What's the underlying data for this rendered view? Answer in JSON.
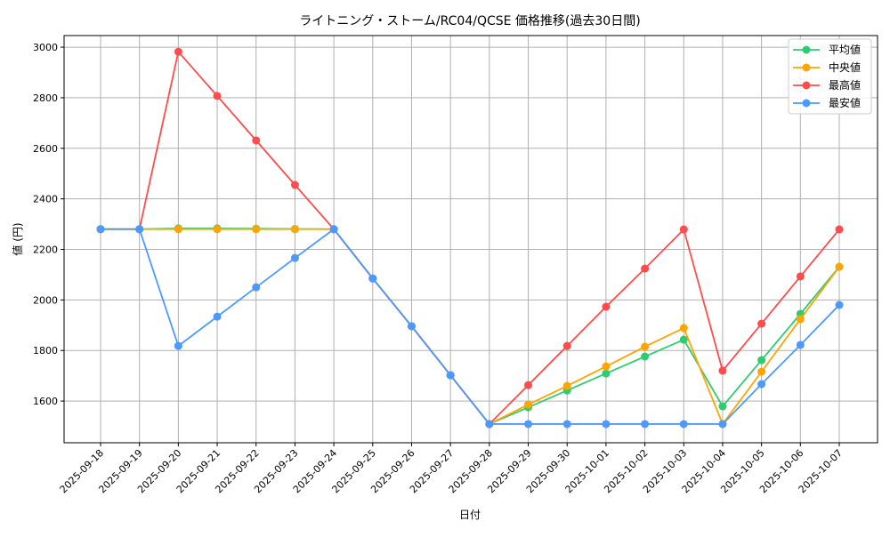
{
  "chart_data": {
    "type": "line",
    "title": "ライトニング・ストーム/RC04/QCSE 価格推移(過去30日間)",
    "xlabel": "日付",
    "ylabel": "値 (円)",
    "ylim": [
      1435,
      3046
    ],
    "yticks": [
      1600,
      1800,
      2000,
      2200,
      2400,
      2600,
      2800,
      3000
    ],
    "grid": true,
    "legend_position": "upper right",
    "categories": [
      "2025-09-18",
      "2025-09-19",
      "2025-09-20",
      "2025-09-21",
      "2025-09-22",
      "2025-09-23",
      "2025-09-24",
      "2025-09-25",
      "2025-09-26",
      "2025-09-27",
      "2025-09-28",
      "2025-09-29",
      "2025-09-30",
      "2025-10-01",
      "2025-10-02",
      "2025-10-03",
      "2025-10-04",
      "2025-10-05",
      "2025-10-06",
      "2025-10-07"
    ],
    "series": [
      {
        "name": "平均値",
        "color": "#2ecc71",
        "values": [
          2280,
          2280,
          2283,
          2283,
          2282,
          2281,
          2280,
          2085,
          1896,
          1702,
          1509,
          1575,
          1642,
          1709,
          1776,
          1843,
          1579,
          1762,
          1945,
          2131
        ]
      },
      {
        "name": "中央値",
        "color": "#ffa500",
        "values": [
          2280,
          2280,
          2280,
          2280,
          2280,
          2280,
          2280,
          2085,
          1896,
          1702,
          1509,
          1586,
          1660,
          1737,
          1815,
          1889,
          1509,
          1716,
          1924,
          2131
        ]
      },
      {
        "name": "最高値",
        "color": "#ff4c4c",
        "values": [
          2280,
          2280,
          2982,
          2807,
          2631,
          2455,
          2280,
          2085,
          1896,
          1702,
          1509,
          1663,
          1818,
          1973,
          2124,
          2279,
          1720,
          1906,
          2093,
          2279
        ]
      },
      {
        "name": "最安値",
        "color": "#4c9aff",
        "values": [
          2280,
          2280,
          1818,
          1934,
          2050,
          2166,
          2280,
          2085,
          1896,
          1702,
          1509,
          1509,
          1509,
          1509,
          1509,
          1509,
          1509,
          1667,
          1822,
          1980
        ]
      }
    ]
  }
}
